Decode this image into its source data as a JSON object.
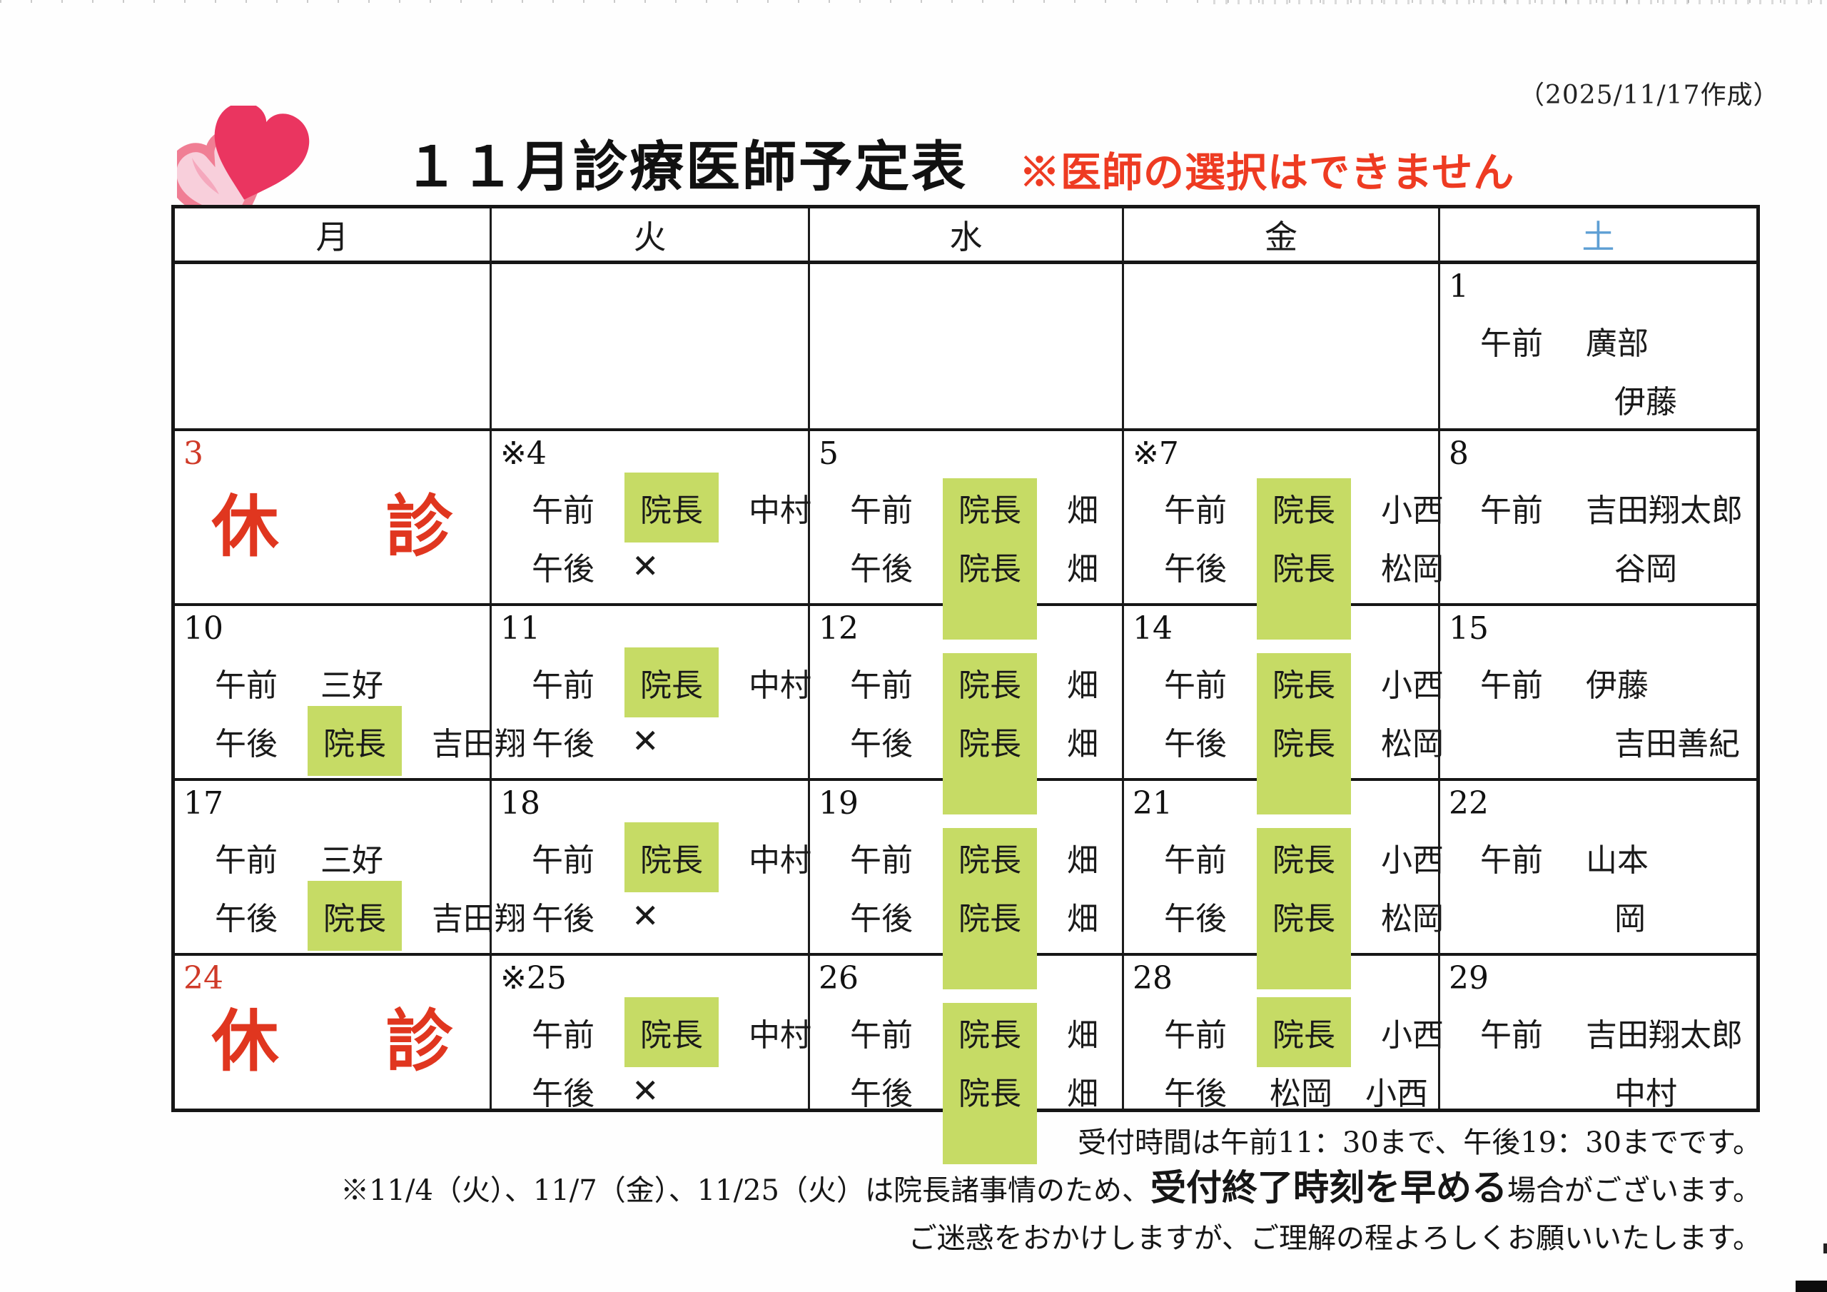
{
  "created_date": "（2025/11/17作成）",
  "title": "１１月診療医師予定表",
  "notice": "※医師の選択はできません",
  "colors": {
    "highlight_green": "#c6db65",
    "notice_red": "#ee3b22",
    "closed_red": "#e0361f",
    "date_red": "#cf3a28",
    "saturday_blue": "#5e9fd4"
  },
  "weekday_header": [
    "月",
    "火",
    "水",
    "金",
    "土"
  ],
  "legend": {
    "am": "午前",
    "pm": "午後",
    "director": "院長",
    "closed": "休　診",
    "no_clinic": "✕"
  },
  "weeks": [
    [
      {
        "type": "empty"
      },
      {
        "type": "empty"
      },
      {
        "type": "empty"
      },
      {
        "type": "empty"
      },
      {
        "type": "normal",
        "date": "1",
        "lines": [
          {
            "label": "午前",
            "names": [
              "廣部"
            ]
          },
          {
            "label": "",
            "names": [
              "伊藤"
            ],
            "indent": true
          }
        ]
      }
    ],
    [
      {
        "type": "closed",
        "date": "3",
        "red": true
      },
      {
        "type": "normal",
        "date": "※4",
        "lines": [
          {
            "label": "午前",
            "chip": true,
            "names": [
              "中村"
            ]
          },
          {
            "label": "午後",
            "cross": true
          }
        ]
      },
      {
        "type": "normal",
        "date": "5",
        "joined": true,
        "lines": [
          {
            "label": "午前",
            "chip": true,
            "names": [
              "畑"
            ]
          },
          {
            "label": "午後",
            "chip": true,
            "names": [
              "畑"
            ]
          }
        ]
      },
      {
        "type": "normal",
        "date": "※7",
        "joined": true,
        "lines": [
          {
            "label": "午前",
            "chip": true,
            "names": [
              "小西"
            ]
          },
          {
            "label": "午後",
            "chip": true,
            "names": [
              "松岡"
            ]
          }
        ]
      },
      {
        "type": "normal",
        "date": "8",
        "lines": [
          {
            "label": "午前",
            "names": [
              "吉田翔太郎"
            ]
          },
          {
            "label": "",
            "names": [
              "谷岡"
            ],
            "indent": true
          }
        ]
      }
    ],
    [
      {
        "type": "normal",
        "date": "10",
        "lines": [
          {
            "label": "午前",
            "names": [
              "三好"
            ]
          },
          {
            "label": "午後",
            "chip": true,
            "names": [
              "吉田翔"
            ]
          }
        ]
      },
      {
        "type": "normal",
        "date": "11",
        "lines": [
          {
            "label": "午前",
            "chip": true,
            "names": [
              "中村"
            ]
          },
          {
            "label": "午後",
            "cross": true
          }
        ]
      },
      {
        "type": "normal",
        "date": "12",
        "joined": true,
        "lines": [
          {
            "label": "午前",
            "chip": true,
            "names": [
              "畑"
            ]
          },
          {
            "label": "午後",
            "chip": true,
            "names": [
              "畑"
            ]
          }
        ]
      },
      {
        "type": "normal",
        "date": "14",
        "joined": true,
        "lines": [
          {
            "label": "午前",
            "chip": true,
            "names": [
              "小西"
            ]
          },
          {
            "label": "午後",
            "chip": true,
            "names": [
              "松岡"
            ]
          }
        ]
      },
      {
        "type": "normal",
        "date": "15",
        "lines": [
          {
            "label": "午前",
            "names": [
              "伊藤"
            ]
          },
          {
            "label": "",
            "names": [
              "吉田善紀"
            ],
            "indent": true
          }
        ]
      }
    ],
    [
      {
        "type": "normal",
        "date": "17",
        "lines": [
          {
            "label": "午前",
            "names": [
              "三好"
            ]
          },
          {
            "label": "午後",
            "chip": true,
            "names": [
              "吉田翔"
            ]
          }
        ]
      },
      {
        "type": "normal",
        "date": "18",
        "lines": [
          {
            "label": "午前",
            "chip": true,
            "names": [
              "中村"
            ]
          },
          {
            "label": "午後",
            "cross": true
          }
        ]
      },
      {
        "type": "normal",
        "date": "19",
        "joined": true,
        "lines": [
          {
            "label": "午前",
            "chip": true,
            "names": [
              "畑"
            ]
          },
          {
            "label": "午後",
            "chip": true,
            "names": [
              "畑"
            ]
          }
        ]
      },
      {
        "type": "normal",
        "date": "21",
        "joined": true,
        "lines": [
          {
            "label": "午前",
            "chip": true,
            "names": [
              "小西"
            ]
          },
          {
            "label": "午後",
            "chip": true,
            "names": [
              "松岡"
            ]
          }
        ]
      },
      {
        "type": "normal",
        "date": "22",
        "lines": [
          {
            "label": "午前",
            "names": [
              "山本"
            ]
          },
          {
            "label": "",
            "names": [
              "岡"
            ],
            "indent": true
          }
        ]
      }
    ],
    [
      {
        "type": "closed",
        "date": "24",
        "red": true
      },
      {
        "type": "normal",
        "date": "※25",
        "lines": [
          {
            "label": "午前",
            "chip": true,
            "names": [
              "中村"
            ]
          },
          {
            "label": "午後",
            "cross": true
          }
        ]
      },
      {
        "type": "normal",
        "date": "26",
        "joined": true,
        "lines": [
          {
            "label": "午前",
            "chip": true,
            "names": [
              "畑"
            ]
          },
          {
            "label": "午後",
            "chip": true,
            "names": [
              "畑"
            ]
          }
        ]
      },
      {
        "type": "normal",
        "date": "28",
        "lines": [
          {
            "label": "午前",
            "chip": true,
            "names": [
              "小西"
            ]
          },
          {
            "label": "午後",
            "names": [
              "松岡",
              "小西"
            ]
          }
        ]
      },
      {
        "type": "normal",
        "date": "29",
        "lines": [
          {
            "label": "午前",
            "names": [
              "吉田翔太郎"
            ]
          },
          {
            "label": "",
            "names": [
              "中村"
            ],
            "indent": true
          }
        ]
      }
    ]
  ],
  "footnotes": {
    "line1": "受付時間は午前11：30まで、午後19：30までです。",
    "line2_pre": "※11/4（火）、11/7（金）、11/25（火）は院長諸事情のため、",
    "line2_bold": "受付終了時刻を早める",
    "line2_post": "場合がございます。",
    "line3": "ご迷惑をおかけしますが、ご理解の程よろしくお願いいたします。"
  }
}
